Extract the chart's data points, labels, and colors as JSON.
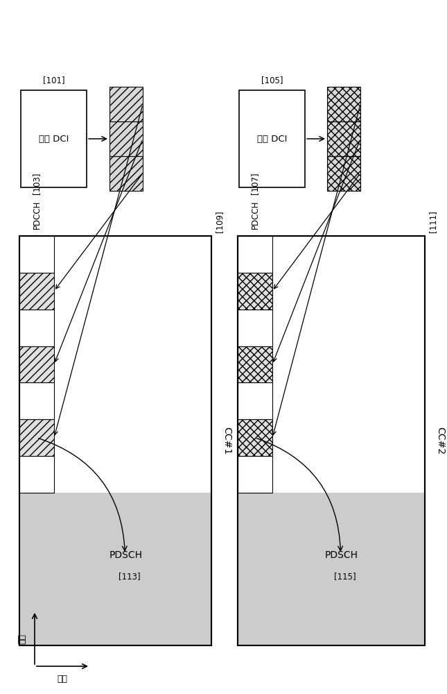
{
  "white": "#ffffff",
  "light_gray": "#cccccc",
  "black": "#000000",
  "hatch_diag": "///",
  "hatch_cross": "xxx",
  "cc1_label": "CC#1",
  "cc2_label": "CC#2",
  "cc1_id": "[101]",
  "cc2_id": "[105]",
  "cc1_frame_id": "[109]",
  "cc2_frame_id": "[111]",
  "pdcch1_label": "PDCCH\n[103]",
  "pdcch2_label": "PDCCH\n[107]",
  "pdsch_label": "PDSCH",
  "dci_label": "普通 DCI",
  "id_113": "[113]",
  "id_115": "[115]",
  "time_label": "时间",
  "freq_label": "频率"
}
